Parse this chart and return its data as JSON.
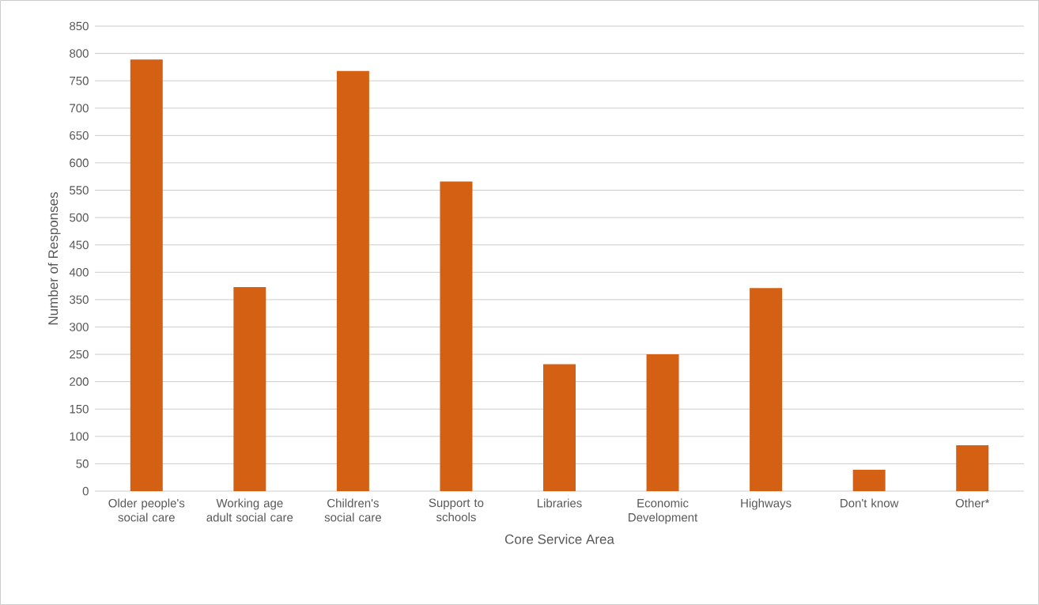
{
  "chart_data": {
    "type": "bar",
    "xlabel": "Core Service Area",
    "ylabel": "Number of Responses",
    "categories": [
      "Older people's social care",
      "Working age adult social care",
      "Children's social care",
      "Support to schools",
      "Libraries",
      "Economic Development",
      "Highways",
      "Don't know",
      "Other*"
    ],
    "values": [
      789,
      373,
      768,
      566,
      232,
      250,
      371,
      39,
      84
    ],
    "color": "#d46013",
    "ylim": [
      0,
      850
    ],
    "yticks": [
      0,
      50,
      100,
      150,
      200,
      250,
      300,
      350,
      400,
      450,
      500,
      550,
      600,
      650,
      700,
      750,
      800,
      850
    ],
    "grid": "y"
  }
}
